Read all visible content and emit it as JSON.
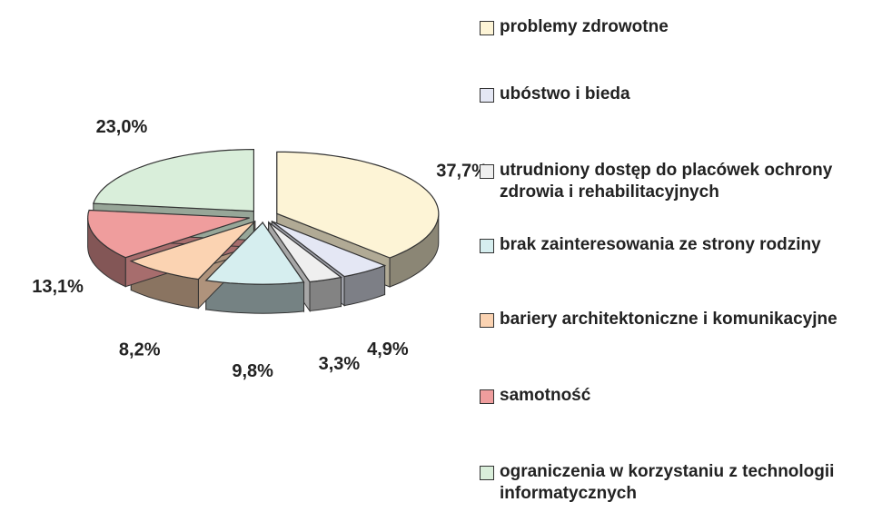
{
  "chart_data": {
    "type": "pie3d",
    "categories": [
      "problemy zdrowotne",
      "ubóstwo i bieda",
      "utrudniony dostęp do placówek ochrony zdrowia i rehabilitacyjnych",
      "brak zainteresowania ze strony rodziny",
      "bariery architektoniczne i komunikacyjne",
      "samotność",
      "ograniczenia w korzystaniu z technologii informatycznych"
    ],
    "values": [
      37.7,
      4.9,
      3.3,
      9.8,
      8.2,
      13.1,
      23.0
    ],
    "value_labels": [
      "37,7%",
      "4,9%",
      "3,3%",
      "9,8%",
      "8,2%",
      "13,1%",
      "23,0%"
    ],
    "colors": [
      "#fdf4d6",
      "#e4e7f4",
      "#efefef",
      "#d6eeef",
      "#fbd3b2",
      "#ef9d9d",
      "#d9eeda"
    ],
    "legend": "right"
  }
}
